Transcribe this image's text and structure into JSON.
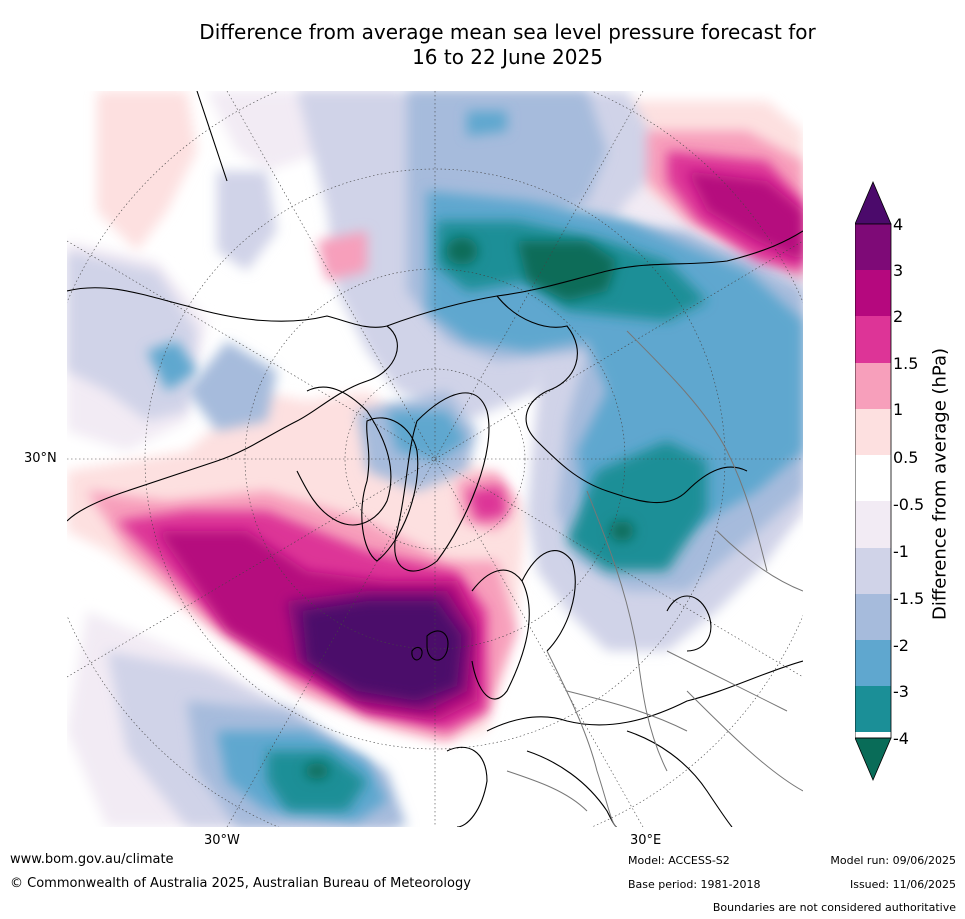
{
  "title_line1": "Difference from average mean sea level pressure forecast for",
  "title_line2": "16 to 22 June 2025",
  "map": {
    "projection": "north-polar-stereographic",
    "lat_label": "30°N",
    "lon_labels": [
      "30°W",
      "30°E"
    ]
  },
  "colorbar": {
    "label": "Difference from average (hPa)",
    "ticks": [
      "4",
      "3",
      "2",
      "1.5",
      "1",
      "0.5",
      "-0.5",
      "-1",
      "-1.5",
      "-2",
      "-3",
      "-4"
    ],
    "colors": [
      "#4b0a6b",
      "#7e0a77",
      "#b5087e",
      "#dd3497",
      "#f79fbb",
      "#fde0e0",
      "#ffffff",
      "#f2ebf4",
      "#d0d3e8",
      "#a6bbdc",
      "#5fa7cf",
      "#1b8f97",
      "#096c58"
    ],
    "colors_order": "top-to-bottom, first is upper extension arrow, last is lower extension arrow"
  },
  "footer": {
    "url": "www.bom.gov.au/climate",
    "copyright": "© Commonwealth of Australia 2025, Australian Bureau of Meteorology",
    "model": "Model: ACCESS-S2",
    "base_period": "Base period: 1981-2018",
    "model_run": "Model run: 09/06/2025",
    "issued": "Issued: 11/06/2025",
    "disclaimer": "Boundaries are not considered authoritative"
  }
}
